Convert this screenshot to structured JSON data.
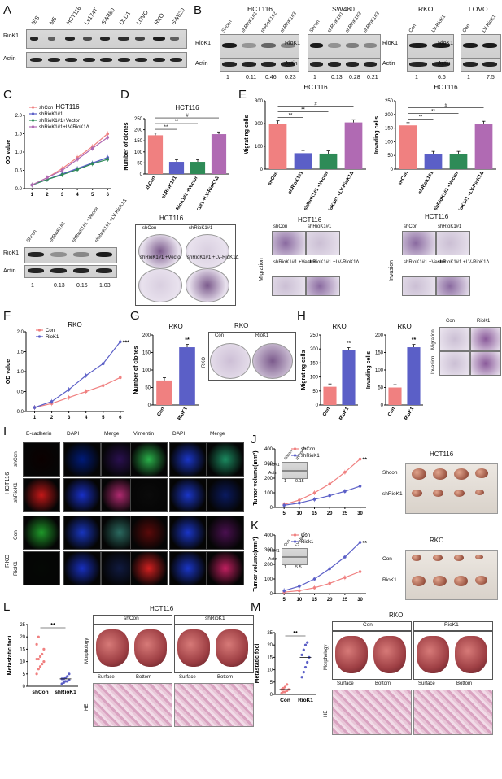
{
  "panel_letters": [
    "A",
    "B",
    "C",
    "D",
    "E",
    "F",
    "G",
    "H",
    "I",
    "J",
    "K",
    "L",
    "M"
  ],
  "panelA": {
    "lanes": [
      "IES",
      "M5",
      "HCT116",
      "Ls174T",
      "SW480",
      "DLD1",
      "LOVO",
      "RKO",
      "SW620"
    ],
    "rows": [
      "RioK1",
      "Actin"
    ]
  },
  "panelB": {
    "blots": [
      {
        "title": "HCT116",
        "lanes": [
          "Shcon",
          "shRioK1#1",
          "shRioK1#2",
          "shRioK1#3"
        ],
        "quant": [
          "1",
          "0.11",
          "0.46",
          "0.23"
        ]
      },
      {
        "title": "SW480",
        "lanes": [
          "Shcon",
          "shRioK1#1",
          "shRioK1#2",
          "shRioK1#3"
        ],
        "quant": [
          "1",
          "0.13",
          "0.28",
          "0.21"
        ]
      },
      {
        "title": "RKO",
        "lanes": [
          "Con",
          "LV-RioK1"
        ],
        "quant": [
          "1",
          "6.6"
        ]
      },
      {
        "title": "LOVO",
        "lanes": [
          "Con",
          "LV-RioK1"
        ],
        "quant": [
          "1",
          "7.5"
        ]
      }
    ],
    "rows": [
      "RioK1",
      "Actin"
    ]
  },
  "panelC": {
    "blot_lanes": [
      "Shcon",
      "shRioK1#1",
      "shRioK1#1 +Vector",
      "shRioK1#1 +LV-RioK1Δ"
    ],
    "blot_rows": [
      "RioK1",
      "Actin"
    ],
    "quant": [
      "1",
      "0.13",
      "0.16",
      "1.03"
    ]
  },
  "panelD": {
    "plate_title": "HCT116",
    "plate_labels": [
      "shCon",
      "shRioK1#1",
      "shRioK1#1 +Vector",
      "shRioK1#1 +LV-RioK1Δ"
    ]
  },
  "panelE": {
    "img_title_1": "HCT116",
    "img_title_2": "HCT116",
    "row_label_1": "Migration",
    "row_label_2": "Invasion",
    "img_labels": [
      "shCon",
      "shRioK1#1",
      "shRioK1#1 +Vector",
      "shRioK1#1 +LV-RioK1Δ"
    ]
  },
  "panelG": {
    "plate_title": "RKO",
    "plate_labels": [
      "Con",
      "RioK1"
    ],
    "side": "RKO"
  },
  "panelH": {
    "img_labels": [
      "Con",
      "RioK1"
    ],
    "rows": [
      "Migration",
      "Invasion"
    ]
  },
  "panelI": {
    "cols_left": [
      "E-cadherin",
      "DAPI",
      "Merge"
    ],
    "cols_right": [
      "Vimentin",
      "DAPI",
      "Merge"
    ],
    "groups": [
      {
        "cell": "HCT116",
        "rows": [
          "shCon",
          "shRioK1"
        ]
      },
      {
        "cell": "RKO",
        "rows": [
          "Con",
          "RioK1"
        ]
      }
    ]
  },
  "panelJ": {
    "inset_lanes": [
      "Shcon",
      "shRioK1"
    ],
    "inset_rows": [
      "RioK1",
      "Actin"
    ],
    "inset_quant": [
      "1",
      "0.15"
    ],
    "tray_title": "HCT116",
    "tray_rows": [
      "Shcon",
      "shRioK1"
    ]
  },
  "panelK": {
    "inset_lanes": [
      "Con",
      "LV-RioK1"
    ],
    "inset_rows": [
      "RioK1",
      "Actin"
    ],
    "inset_quant": [
      "1",
      "5.5"
    ],
    "tray_title": "RKO",
    "tray_rows": [
      "Con",
      "RioK1"
    ]
  },
  "panelL": {
    "title": "HCT116",
    "groups": [
      "shCon",
      "shRioK1"
    ],
    "sub": [
      "Surface",
      "Bottom"
    ],
    "rows": [
      "Morphology",
      "HE"
    ]
  },
  "panelM": {
    "title": "RKO",
    "groups": [
      "Con",
      "RioK1"
    ],
    "sub": [
      "Surface",
      "Bottom"
    ],
    "rows": [
      "Morphology",
      "HE"
    ]
  },
  "chart_data": [
    {
      "id": "C",
      "type": "line",
      "title": "HCT116",
      "ylabel": "OD value",
      "x": [
        1,
        2,
        3,
        4,
        5,
        6
      ],
      "ylim": [
        0,
        2.0
      ],
      "yticks": [
        0.0,
        0.5,
        1.0,
        1.5,
        2.0
      ],
      "series": [
        {
          "name": "shCon",
          "color": "#f08080",
          "values": [
            0.1,
            0.3,
            0.55,
            0.85,
            1.15,
            1.5
          ]
        },
        {
          "name": "shRioK1#1",
          "color": "#5b5fc7",
          "values": [
            0.1,
            0.25,
            0.4,
            0.55,
            0.7,
            0.85
          ]
        },
        {
          "name": "shRioK1#1+Vector",
          "color": "#2e8b57",
          "values": [
            0.1,
            0.25,
            0.38,
            0.52,
            0.68,
            0.8
          ]
        },
        {
          "name": "shRioK1#1+LV-RioK1Δ",
          "color": "#b06ab3",
          "values": [
            0.1,
            0.3,
            0.5,
            0.8,
            1.1,
            1.4
          ]
        }
      ]
    },
    {
      "id": "D",
      "type": "bar",
      "title": "HCT116",
      "ylabel": "Number of clones",
      "ylim": [
        0,
        250
      ],
      "yticks": [
        0,
        50,
        100,
        150,
        200,
        250
      ],
      "categories": [
        "shCon",
        "shRioK1#1",
        "shRioK1#1 +Vector",
        "shRioK1#1 +LV-RioK1Δ"
      ],
      "values": [
        175,
        55,
        55,
        180
      ],
      "colors": [
        "#f08080",
        "#5b5fc7",
        "#2e8b57",
        "#b06ab3"
      ],
      "sig": [
        "**",
        "**",
        "#"
      ]
    },
    {
      "id": "E1",
      "type": "bar",
      "title": "HCT116",
      "ylabel": "Migrating cells",
      "ylim": [
        0,
        300
      ],
      "yticks": [
        0,
        100,
        200,
        300
      ],
      "categories": [
        "shCon",
        "shRioK1#1",
        "shRioK1#1 +Vector",
        "shRioK1#1 +LV-RioK1Δ"
      ],
      "values": [
        200,
        70,
        68,
        205
      ],
      "colors": [
        "#f08080",
        "#5b5fc7",
        "#2e8b57",
        "#b06ab3"
      ],
      "sig": [
        "**",
        "**",
        "#"
      ]
    },
    {
      "id": "E2",
      "type": "bar",
      "title": "HCT116",
      "ylabel": "Invading cells",
      "ylim": [
        0,
        250
      ],
      "yticks": [
        0,
        50,
        100,
        150,
        200,
        250
      ],
      "categories": [
        "shCon",
        "shRioK1#1",
        "shRioK1#1 +Vector",
        "shRioK1#1 +LV-RioK1Δ"
      ],
      "values": [
        160,
        55,
        55,
        165
      ],
      "colors": [
        "#f08080",
        "#5b5fc7",
        "#2e8b57",
        "#b06ab3"
      ],
      "sig": [
        "**",
        "**",
        "#"
      ]
    },
    {
      "id": "F",
      "type": "line",
      "title": "RKO",
      "ylabel": "OD value",
      "x": [
        1,
        2,
        3,
        4,
        5,
        6
      ],
      "ylim": [
        0,
        2.0
      ],
      "yticks": [
        0.0,
        0.5,
        1.0,
        1.5,
        2.0
      ],
      "series": [
        {
          "name": "Con",
          "color": "#f08080",
          "values": [
            0.1,
            0.2,
            0.35,
            0.5,
            0.65,
            0.85
          ]
        },
        {
          "name": "RioK1",
          "color": "#5b5fc7",
          "values": [
            0.1,
            0.25,
            0.55,
            0.9,
            1.2,
            1.75
          ]
        }
      ],
      "sig": "***"
    },
    {
      "id": "G",
      "type": "bar",
      "title": "RKO",
      "ylabel": "Number of clones",
      "ylim": [
        0,
        200
      ],
      "yticks": [
        0,
        50,
        100,
        150,
        200
      ],
      "categories": [
        "Con",
        "RioK1"
      ],
      "values": [
        70,
        165
      ],
      "colors": [
        "#f08080",
        "#5b5fc7"
      ],
      "sig": [
        "**"
      ]
    },
    {
      "id": "H1",
      "type": "bar",
      "title": "RKO",
      "ylabel": "Migrating cells",
      "ylim": [
        0,
        250
      ],
      "yticks": [
        0,
        50,
        100,
        150,
        200,
        250
      ],
      "categories": [
        "Con",
        "RioK1"
      ],
      "values": [
        65,
        195
      ],
      "colors": [
        "#f08080",
        "#5b5fc7"
      ],
      "sig": [
        "**"
      ]
    },
    {
      "id": "H2",
      "type": "bar",
      "title": "RKO",
      "ylabel": "Invading cells",
      "ylim": [
        0,
        200
      ],
      "yticks": [
        0,
        50,
        100,
        150,
        200
      ],
      "categories": [
        "Con",
        "RioK1"
      ],
      "values": [
        50,
        165
      ],
      "colors": [
        "#f08080",
        "#5b5fc7"
      ],
      "sig": [
        "**"
      ]
    },
    {
      "id": "J",
      "type": "line",
      "ylabel": "Tumor volume(mm³)",
      "x": [
        5,
        10,
        15,
        20,
        25,
        30
      ],
      "ylim": [
        0,
        400
      ],
      "yticks": [
        0,
        100,
        200,
        300,
        400
      ],
      "series": [
        {
          "name": "shCon",
          "color": "#f08080",
          "values": [
            20,
            50,
            100,
            160,
            240,
            330
          ]
        },
        {
          "name": "shRioK1",
          "color": "#5b5fc7",
          "values": [
            15,
            30,
            55,
            80,
            110,
            145
          ]
        }
      ],
      "sig": "**"
    },
    {
      "id": "K",
      "type": "line",
      "ylabel": "Tumor volume(mm³)",
      "x": [
        5,
        10,
        15,
        20,
        25,
        30
      ],
      "ylim": [
        0,
        400
      ],
      "yticks": [
        0,
        100,
        200,
        300,
        400
      ],
      "series": [
        {
          "name": "Con",
          "color": "#f08080",
          "values": [
            10,
            20,
            40,
            70,
            110,
            150
          ]
        },
        {
          "name": "Riok1",
          "color": "#5b5fc7",
          "values": [
            20,
            50,
            100,
            170,
            250,
            350
          ]
        }
      ],
      "sig": "**"
    },
    {
      "id": "L",
      "type": "scatter",
      "ylabel": "Metastatic foci",
      "ylim": [
        0,
        25
      ],
      "yticks": [
        0,
        5,
        10,
        15,
        20,
        25
      ],
      "categories": [
        "shCon",
        "shRioK1"
      ],
      "series": [
        {
          "name": "shCon",
          "color": "#f08080",
          "values": [
            5,
            7,
            8,
            9,
            10,
            11,
            11,
            12,
            13,
            15,
            17,
            20
          ],
          "mean": 11
        },
        {
          "name": "shRioK1",
          "color": "#5b5fc7",
          "values": [
            1,
            1.5,
            2,
            2,
            2.5,
            3,
            3,
            3.5,
            4,
            5
          ],
          "mean": 3
        }
      ],
      "sig": "**"
    },
    {
      "id": "M",
      "type": "scatter",
      "ylabel": "Metastatic foci",
      "ylim": [
        0,
        25
      ],
      "yticks": [
        0,
        5,
        10,
        15,
        20,
        25
      ],
      "categories": [
        "Con",
        "RioK1"
      ],
      "series": [
        {
          "name": "Con",
          "color": "#f08080",
          "values": [
            0.5,
            1,
            1,
            1.5,
            2,
            2,
            2.5,
            3,
            4
          ],
          "mean": 2
        },
        {
          "name": "RioK1",
          "color": "#5b5fc7",
          "values": [
            7,
            9,
            11,
            13,
            15,
            16,
            18,
            20,
            21
          ],
          "mean": 15
        }
      ],
      "sig": "**"
    }
  ]
}
